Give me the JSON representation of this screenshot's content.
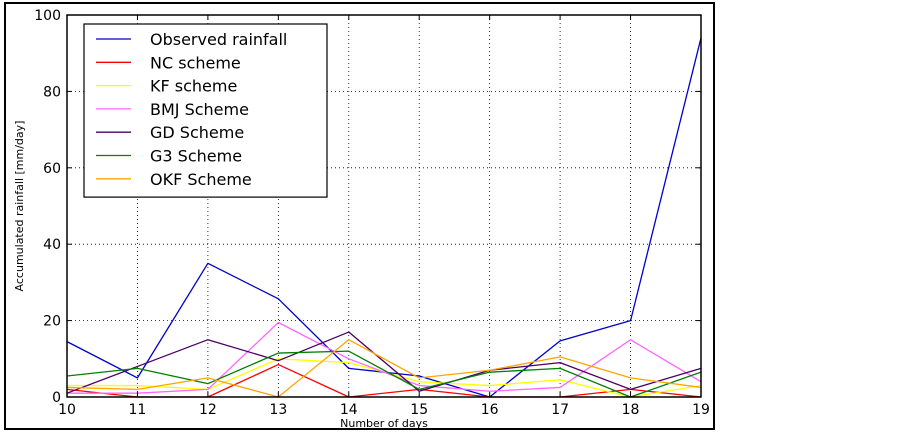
{
  "chart_data": {
    "type": "line",
    "xlabel": "Number of days",
    "ylabel": "Accumulated rainfall [mm/day]",
    "xlim": [
      10,
      19
    ],
    "ylim": [
      0,
      100
    ],
    "x": [
      10,
      11,
      12,
      13,
      14,
      15,
      16,
      17,
      18,
      19
    ],
    "xticks": [
      "10",
      "11",
      "12",
      "13",
      "14",
      "15",
      "16",
      "17",
      "18",
      "19"
    ],
    "yticks": [
      "0",
      "20",
      "40",
      "60",
      "80",
      "100"
    ],
    "grid": true,
    "legend_position": "top-left",
    "series": [
      {
        "name": "Observed rainfall",
        "color": "#0000cc",
        "values": [
          14.5,
          5,
          35,
          25.7,
          7.5,
          5.5,
          0,
          14.7,
          20,
          94
        ]
      },
      {
        "name": "NC scheme",
        "color": "#ff0000",
        "values": [
          2,
          0,
          0,
          8.5,
          0,
          2,
          0,
          0,
          2,
          0
        ]
      },
      {
        "name": "KF scheme",
        "color": "#ffff00",
        "values": [
          3,
          3,
          2,
          10,
          9,
          4,
          3,
          4.5,
          0,
          3
        ]
      },
      {
        "name": "BMJ Scheme",
        "color": "#ff66ff",
        "values": [
          1,
          1,
          2,
          19.5,
          10,
          3,
          1.5,
          2.5,
          15,
          4
        ]
      },
      {
        "name": "GD Scheme",
        "color": "#4b0063",
        "values": [
          1,
          8,
          15,
          9.5,
          17,
          1.5,
          7,
          9,
          2,
          7.5
        ]
      },
      {
        "name": "G3 Scheme",
        "color": "#008000",
        "values": [
          5.5,
          7.5,
          3.5,
          11.5,
          12,
          2,
          6.5,
          7.5,
          0,
          6.5
        ]
      },
      {
        "name": "OKF Scheme",
        "color": "#ffa500",
        "values": [
          2.5,
          2,
          5,
          0,
          15,
          5,
          7,
          10.5,
          5,
          2.5
        ]
      }
    ]
  }
}
